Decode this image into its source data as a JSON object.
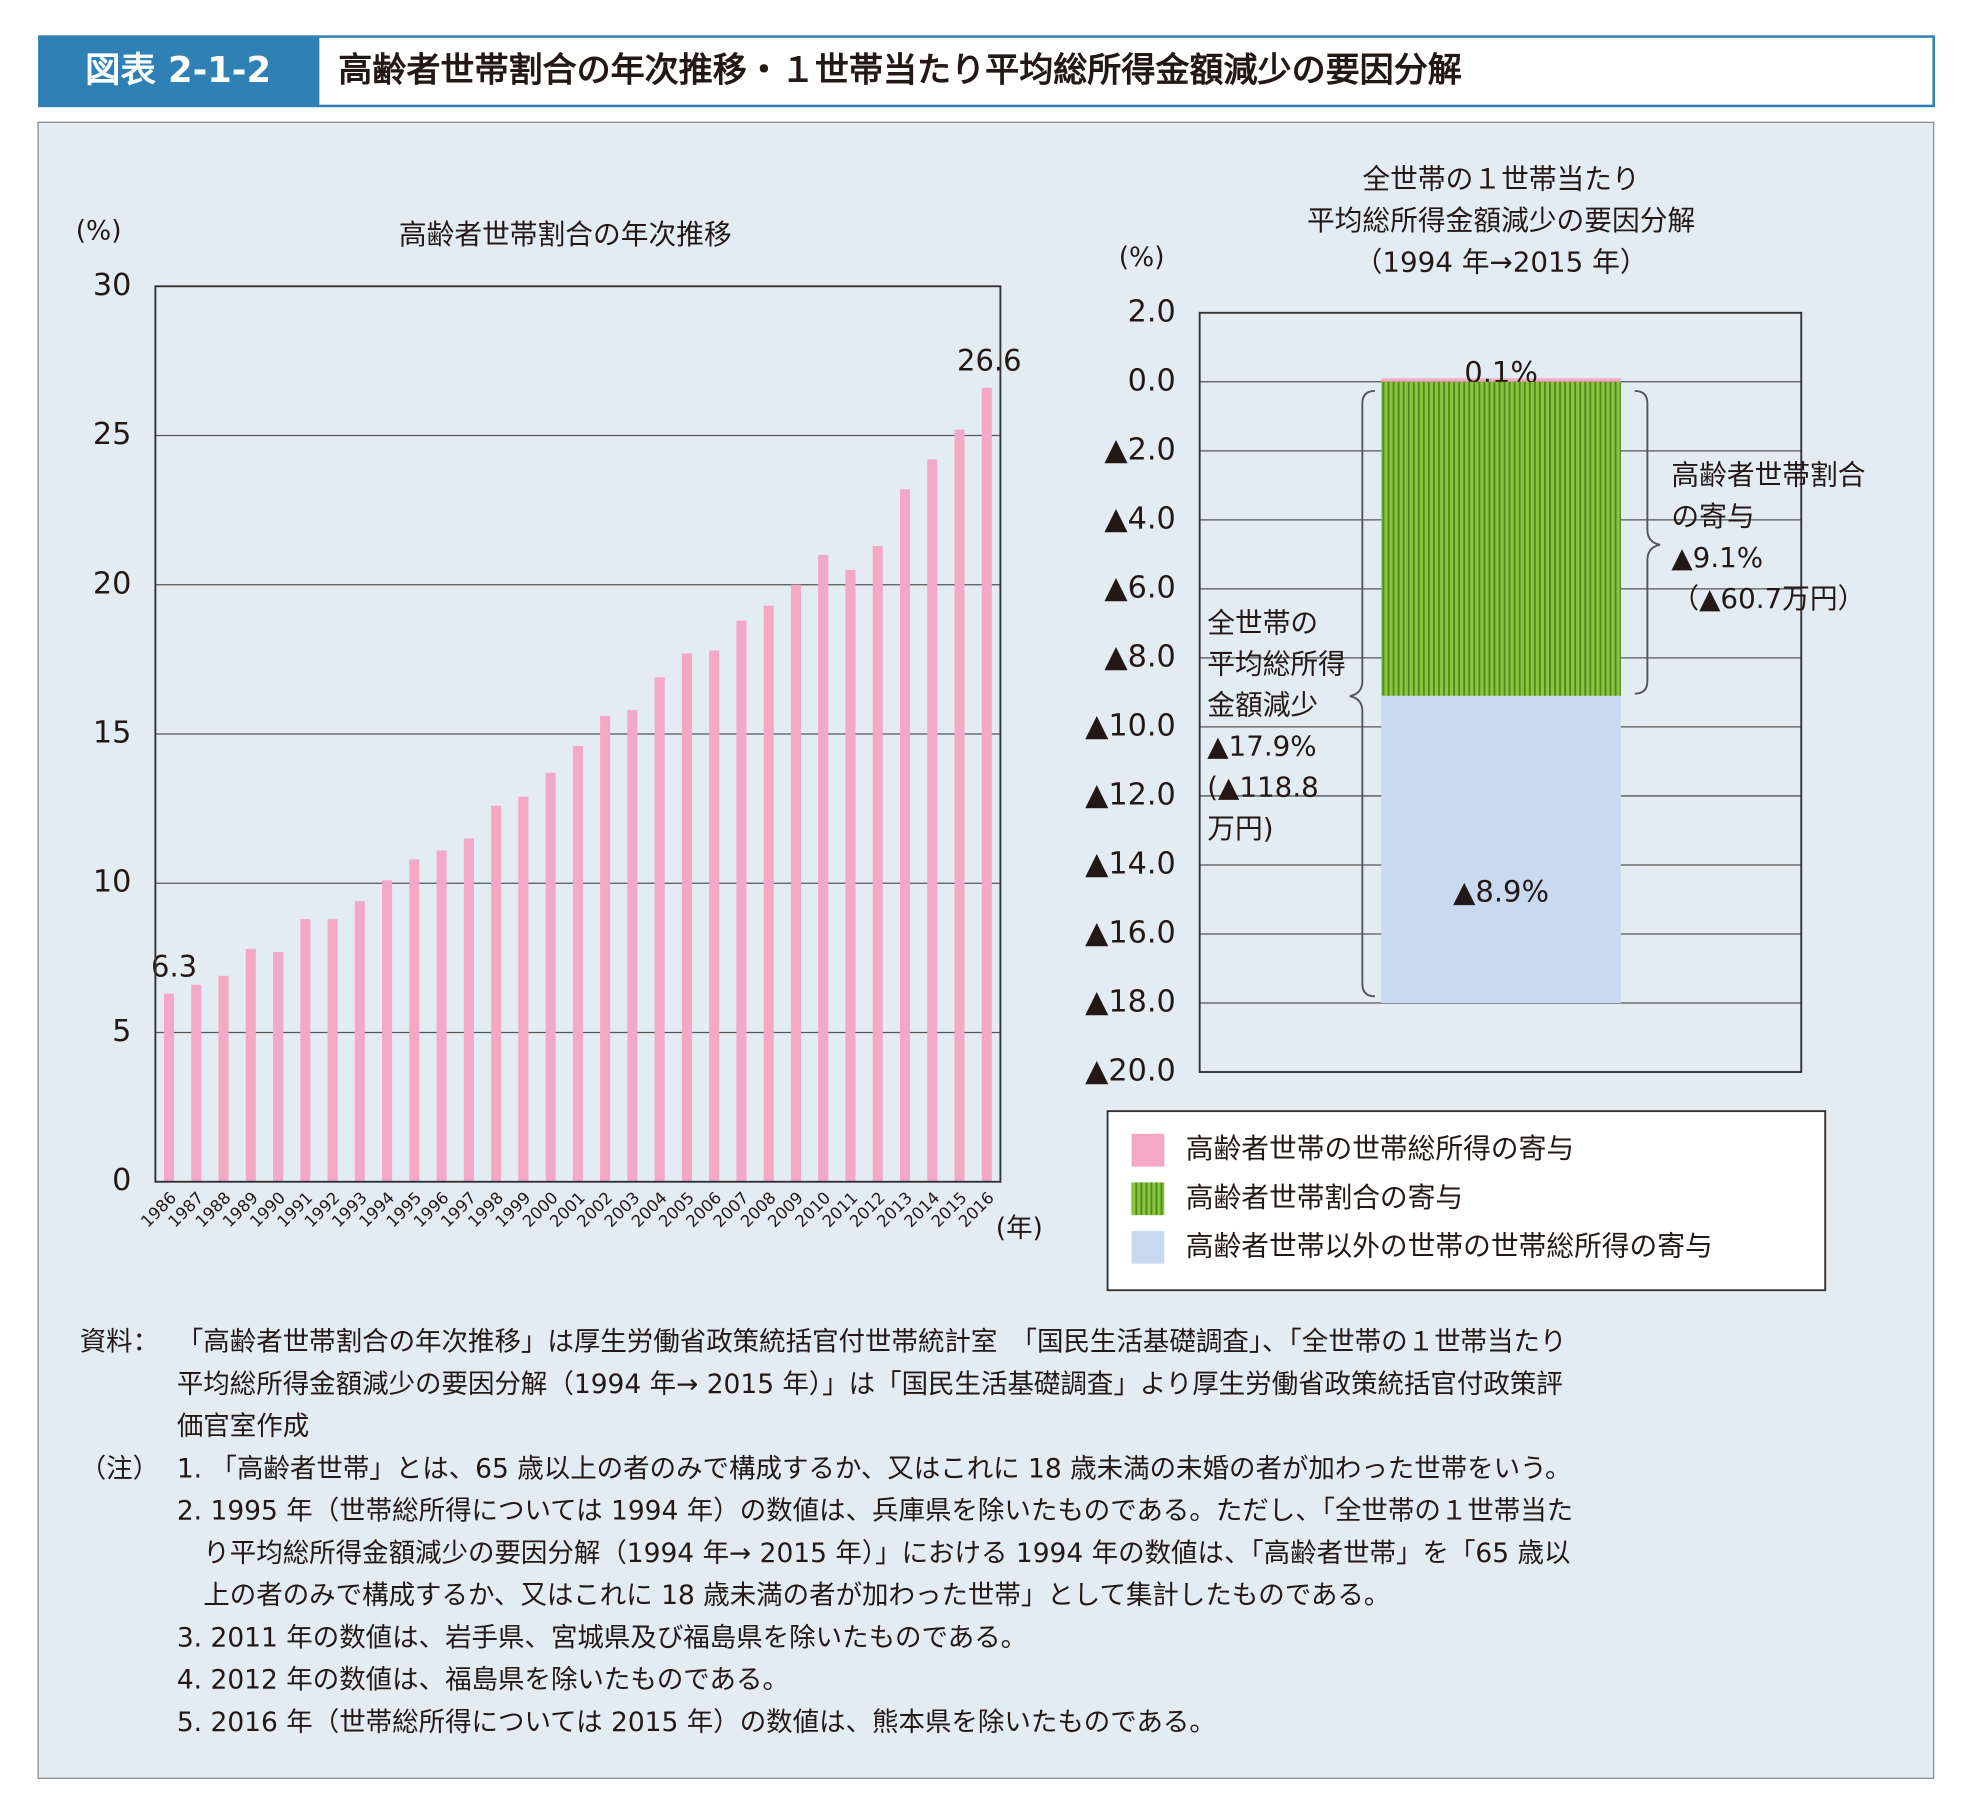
{
  "header": {
    "label": "図表 2-1-2",
    "title": "高齢者世帯割合の年次推移・１世帯当たり平均総所得金額減少の要因分解"
  },
  "chart_data": [
    {
      "type": "bar",
      "title": "高齢者世帯割合の年次推移",
      "y_unit": "(%)",
      "x_unit": "(年)",
      "categories": [
        "1986",
        "1987",
        "1988",
        "1989",
        "1990",
        "1991",
        "1992",
        "1993",
        "1994",
        "1995",
        "1996",
        "1997",
        "1998",
        "1999",
        "2000",
        "2001",
        "2002",
        "2003",
        "2004",
        "2005",
        "2006",
        "2007",
        "2008",
        "2009",
        "2010",
        "2011",
        "2012",
        "2013",
        "2014",
        "2015",
        "2016"
      ],
      "values": [
        6.3,
        6.6,
        6.9,
        7.8,
        7.7,
        8.8,
        8.8,
        9.4,
        10.1,
        10.8,
        11.1,
        11.5,
        12.6,
        12.9,
        13.7,
        14.6,
        15.6,
        15.8,
        16.9,
        17.7,
        17.8,
        18.8,
        19.3,
        20.0,
        21.0,
        20.5,
        21.3,
        23.2,
        24.2,
        25.2,
        26.6
      ],
      "value_labels": [
        "6.3",
        null,
        null,
        null,
        null,
        null,
        null,
        null,
        null,
        null,
        null,
        null,
        null,
        null,
        null,
        null,
        null,
        null,
        null,
        null,
        null,
        null,
        null,
        null,
        null,
        null,
        null,
        null,
        null,
        null,
        "26.6"
      ],
      "color": "#f3a8c5",
      "ylim": [
        0,
        30
      ],
      "yticks": [
        0,
        5,
        10,
        15,
        20,
        25,
        30
      ],
      "grid": true
    },
    {
      "type": "stacked_bar",
      "title": [
        "全世帯の１世帯当たり",
        "平均総所得金額減少の要因分解",
        "（1994 年→2015 年）"
      ],
      "y_unit": "(%)",
      "series": [
        {
          "name": "高齢者世帯の世帯総所得の寄与",
          "color": "#f3a8c5",
          "values": [
            0.1
          ],
          "value_labels": [
            "0.1%"
          ]
        },
        {
          "name": "高齢者世帯割合の寄与",
          "color": "#8cc63f",
          "pattern": "vertical-stripes",
          "values": [
            -9.1
          ]
        },
        {
          "name": "高齢者世帯以外の世帯の世帯総所得の寄与",
          "color": "#c9d9ef",
          "values": [
            -8.9
          ],
          "value_labels": [
            "▲8.9%"
          ]
        }
      ],
      "ylim": [
        -20,
        2
      ],
      "yticks": [
        {
          "value": 2,
          "label": "2.0"
        },
        {
          "value": 0,
          "label": "0.0"
        },
        {
          "value": -2,
          "label": "▲2.0"
        },
        {
          "value": -4,
          "label": "▲4.0"
        },
        {
          "value": -6,
          "label": "▲6.0"
        },
        {
          "value": -8,
          "label": "▲8.0"
        },
        {
          "value": -10,
          "label": "▲10.0"
        },
        {
          "value": -12,
          "label": "▲12.0"
        },
        {
          "value": -14,
          "label": "▲14.0"
        },
        {
          "value": -16,
          "label": "▲16.0"
        },
        {
          "value": -18,
          "label": "▲18.0"
        },
        {
          "value": -20,
          "label": "▲20.0"
        }
      ],
      "grid": true,
      "legend": "bottom",
      "annotations": [
        {
          "lines": [
            "高齢者世帯割合",
            "の寄与",
            "▲9.1%",
            "（▲60.7万円）"
          ]
        },
        {
          "lines": [
            "全世帯の",
            "平均総所得",
            "金額減少",
            "▲17.9%",
            "(▲118.8",
            "万円)"
          ]
        }
      ]
    }
  ],
  "source": {
    "label": "資料：",
    "lines": [
      "「高齢者世帯割合の年次推移」は厚生労働省政策統括官付世帯統計室　「国民生活基礎調査」、「全世帯の１世帯当たり",
      "平均総所得金額減少の要因分解（1994 年→ 2015 年）」は「国民生活基礎調査」より厚生労働省政策統括官付政策評",
      "価官室作成"
    ]
  },
  "notes": {
    "label": "（注）",
    "lines": [
      "1. 「高齢者世帯」とは、65 歳以上の者のみで構成するか、又はこれに 18 歳未満の未婚の者が加わった世帯をいう。",
      "2. 1995 年（世帯総所得については 1994 年）の数値は、兵庫県を除いたものである。ただし、「全世帯の１世帯当た",
      "　り平均総所得金額減少の要因分解（1994 年→ 2015 年）」における 1994 年の数値は、「高齢者世帯」を「65 歳以",
      "　上の者のみで構成するか、又はこれに 18 歳未満の者が加わった世帯」として集計したものである。",
      "3. 2011 年の数値は、岩手県、宮城県及び福島県を除いたものである。",
      "4. 2012 年の数値は、福島県を除いたものである。",
      "5. 2016 年（世帯総所得については 2015 年）の数値は、熊本県を除いたものである。"
    ]
  }
}
